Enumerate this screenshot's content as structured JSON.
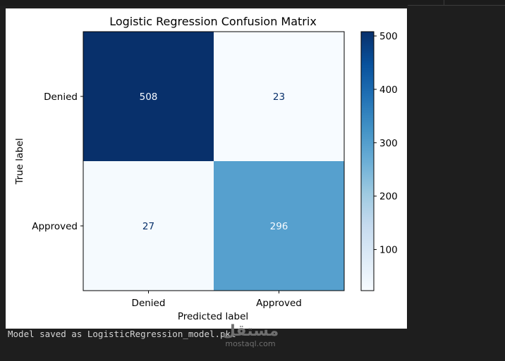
{
  "chart_data": {
    "type": "heatmap",
    "title": "Logistic Regression Confusion Matrix",
    "xlabel": "Predicted label",
    "ylabel": "True label",
    "x_categories": [
      "Denied",
      "Approved"
    ],
    "y_categories": [
      "Denied",
      "Approved"
    ],
    "values": [
      [
        508,
        23
      ],
      [
        27,
        296
      ]
    ],
    "colormap": "Blues",
    "colorbar": {
      "min": 23,
      "max": 508,
      "ticks": [
        100,
        200,
        300,
        400,
        500
      ]
    },
    "colors": {
      "dark": "#08306b",
      "light": "#f7fbff",
      "text_dark": "#08306b",
      "text_light": "#f7fbff"
    }
  },
  "output_text": "Model saved as LogisticRegression_model.pkl",
  "watermark": {
    "arabic": "مستقل",
    "latin": "mostaql.com"
  }
}
